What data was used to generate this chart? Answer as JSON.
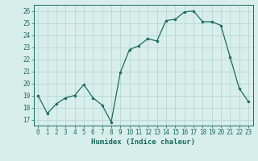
{
  "x": [
    0,
    1,
    2,
    3,
    4,
    5,
    6,
    7,
    8,
    9,
    10,
    11,
    12,
    13,
    14,
    15,
    16,
    17,
    18,
    19,
    20,
    21,
    22,
    23
  ],
  "y": [
    19,
    17.5,
    18.3,
    18.8,
    19.0,
    19.9,
    18.8,
    18.2,
    16.8,
    20.9,
    22.8,
    23.1,
    23.7,
    23.5,
    25.2,
    25.3,
    25.9,
    26.0,
    25.1,
    25.1,
    24.8,
    22.2,
    19.6,
    18.5
  ],
  "line_color": "#1a6b5e",
  "marker": "o",
  "markersize": 2.0,
  "linewidth": 0.9,
  "xlabel": "Humidex (Indice chaleur)",
  "xlim": [
    -0.5,
    23.5
  ],
  "ylim": [
    16.5,
    26.5
  ],
  "yticks": [
    17,
    18,
    19,
    20,
    21,
    22,
    23,
    24,
    25,
    26
  ],
  "xticks": [
    0,
    1,
    2,
    3,
    4,
    5,
    6,
    7,
    8,
    9,
    10,
    11,
    12,
    13,
    14,
    15,
    16,
    17,
    18,
    19,
    20,
    21,
    22,
    23
  ],
  "xtick_labels": [
    "0",
    "1",
    "2",
    "3",
    "4",
    "5",
    "6",
    "7",
    "8",
    "9",
    "10",
    "11",
    "12",
    "13",
    "14",
    "15",
    "16",
    "17",
    "18",
    "19",
    "20",
    "21",
    "22",
    "23"
  ],
  "background_color": "#d8eeeb",
  "grid_color": "#b0d4ce",
  "xlabel_fontsize": 6.5,
  "tick_fontsize": 5.5
}
